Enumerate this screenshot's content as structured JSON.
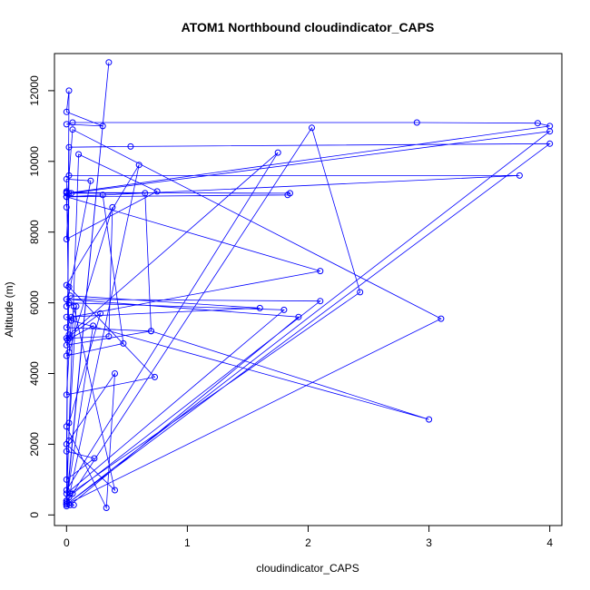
{
  "chart_data": {
    "type": "line",
    "title": "ATOM1 Northbound cloudindicator_CAPS",
    "xlabel": "cloudindicator_CAPS",
    "ylabel": "Altitude (m)",
    "xlim": [
      -0.1,
      4.1
    ],
    "ylim": [
      -300,
      13050
    ],
    "xticks": [
      0,
      1,
      2,
      3,
      4
    ],
    "yticks": [
      0,
      2000,
      4000,
      6000,
      8000,
      10000,
      12000
    ],
    "line_color": "#0000ff",
    "markers": "open-circle",
    "series": [
      {
        "x": [
          0.0,
          0.06,
          0.0,
          0.35,
          0.0,
          0.02,
          0.0,
          0.3,
          0.0,
          0.05,
          2.9,
          3.9,
          4.0,
          0.0,
          0.0,
          0.0,
          1.85,
          1.83,
          0.0,
          0.0,
          0.05,
          3.1,
          0.0,
          0.0,
          0.1,
          0.75,
          0.0,
          0.02,
          0.65,
          0.7,
          0.0,
          0.02,
          1.75,
          0.0,
          0.03,
          2.43,
          2.03,
          0.0,
          0.0,
          0.02,
          0.53,
          4.0,
          0.0,
          0.02,
          0.6,
          0.0,
          0.02,
          0.73,
          0.0,
          0.04,
          2.1,
          0.0,
          0.3,
          0.47,
          0.0,
          0.02,
          0.38,
          0.35,
          0.02,
          0.0,
          0.2,
          0.0,
          0.02,
          1.8,
          0.0,
          0.05,
          2.1,
          0.0,
          0.03,
          1.6,
          0.0,
          0.04,
          3.0,
          0.7,
          0.0,
          0.08,
          0.0,
          0.23,
          0.0,
          0.02,
          3.75,
          0.0,
          0.04,
          4.0,
          0.0,
          0.03,
          1.92,
          0.0,
          0.06,
          0.4,
          0.0,
          0.02,
          0.4,
          0.33,
          0.0,
          0.02,
          0.28,
          0.0,
          0.01,
          0.22,
          0.0,
          0.02
        ],
        "y": [
          250,
          280,
          400,
          12800,
          300,
          12000,
          11400,
          11000,
          11050,
          11100,
          11100,
          11080,
          11000,
          9100,
          9150,
          9120,
          9100,
          9050,
          9000,
          8700,
          10900,
          5550,
          300,
          350,
          10200,
          9150,
          7800,
          9100,
          9100,
          5200,
          4800,
          5100,
          10250,
          700,
          600,
          6300,
          10950,
          350,
          400,
          10400,
          10420,
          10500,
          300,
          500,
          9900,
          6500,
          6450,
          3900,
          3400,
          5600,
          6900,
          9000,
          9050,
          4850,
          4500,
          4600,
          8700,
          5050,
          5000,
          9500,
          9450,
          5900,
          6000,
          5800,
          600,
          600,
          6050,
          6100,
          6200,
          5850,
          5600,
          5500,
          2700,
          5200,
          5300,
          5900,
          1000,
          1600,
          1800,
          9600,
          9600,
          9000,
          9100,
          10850,
          300,
          280,
          5600,
          6100,
          5900,
          700,
          2000,
          2100,
          4000,
          200,
          2500,
          2600,
          5700,
          5000,
          4950,
          5350,
          400,
          500
        ]
      }
    ]
  }
}
